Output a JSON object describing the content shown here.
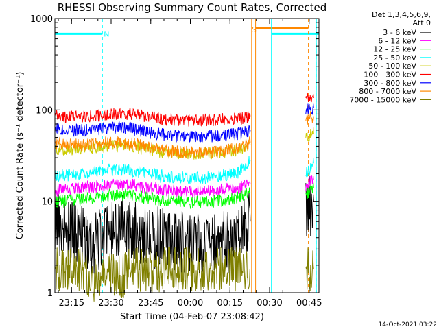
{
  "chart_data": {
    "type": "line",
    "title": "RHESSI Observing Summary Count Rates, Corrected",
    "xlabel": "Start Time (04-Feb-07 23:08:42)",
    "ylabel": "Corrected Count Rate (s⁻¹ detector⁻¹)",
    "yscale": "log",
    "ylim": [
      1,
      1000
    ],
    "xlim_minutes": [
      0,
      100
    ],
    "x_tick_minutes": [
      6.3,
      21.3,
      36.3,
      51.3,
      66.3,
      81.3,
      96.3
    ],
    "x_tick_labels": [
      "23:15",
      "23:30",
      "23:45",
      "00:00",
      "00:15",
      "00:30",
      "00:45"
    ],
    "y_ticks": [
      1,
      10,
      100,
      1000
    ],
    "y_tick_labels": [
      "1",
      "10",
      "100",
      "1000"
    ],
    "legend_header": "Det 1,3,4,5,6,9,",
    "legend_subheader": "Att 0",
    "legend_position": "right",
    "timestamp": "14-Oct-2021 03:22",
    "series": [
      {
        "name": "3 - 6 keV",
        "color": "#000000",
        "x": [
          0,
          5,
          10,
          15,
          20,
          25,
          30,
          35,
          40,
          45,
          50,
          55,
          60,
          65,
          70,
          74,
          95,
          98
        ],
        "y": [
          6,
          5,
          4,
          3.5,
          4,
          6,
          4.5,
          4,
          4,
          3.5,
          3.5,
          3.5,
          3.5,
          3.5,
          4,
          6,
          8,
          10
        ]
      },
      {
        "name": "6 - 12 keV",
        "color": "#ff00ff",
        "x": [
          0,
          5,
          10,
          15,
          20,
          25,
          30,
          35,
          40,
          45,
          50,
          55,
          60,
          65,
          70,
          74,
          95,
          98
        ],
        "y": [
          13,
          13.5,
          14,
          14.5,
          15,
          15.5,
          15,
          14,
          13.5,
          13,
          12.8,
          12.8,
          13,
          13.5,
          14,
          15.5,
          15,
          17
        ]
      },
      {
        "name": "12 - 25 keV",
        "color": "#00ff00",
        "x": [
          0,
          5,
          10,
          15,
          20,
          25,
          30,
          35,
          40,
          45,
          50,
          55,
          60,
          65,
          70,
          74,
          95,
          98
        ],
        "y": [
          10,
          10.2,
          10.5,
          11,
          11.5,
          12,
          11.5,
          10.8,
          10.3,
          10,
          9.8,
          9.8,
          10,
          10.3,
          11,
          12.5,
          12,
          14
        ]
      },
      {
        "name": "25 - 50 keV",
        "color": "#00ffff",
        "x": [
          0,
          5,
          10,
          15,
          20,
          25,
          30,
          35,
          40,
          45,
          50,
          55,
          60,
          65,
          70,
          74,
          95,
          98
        ],
        "y": [
          19,
          19.5,
          20,
          21,
          22,
          22.5,
          21.5,
          20,
          19,
          18.5,
          18,
          18,
          18.5,
          19.5,
          21,
          28,
          20,
          26
        ]
      },
      {
        "name": "50 - 100 keV",
        "color": "#cccc00",
        "x": [
          0,
          5,
          10,
          15,
          20,
          25,
          30,
          35,
          40,
          45,
          50,
          55,
          60,
          65,
          70,
          74,
          95,
          98
        ],
        "y": [
          37,
          37,
          38,
          39,
          40,
          40.5,
          39,
          37,
          35,
          34,
          33.5,
          33.5,
          34,
          35,
          37,
          42,
          50,
          55
        ]
      },
      {
        "name": "100 - 300 keV",
        "color": "#ff0000",
        "x": [
          0,
          5,
          10,
          15,
          20,
          25,
          30,
          35,
          40,
          45,
          50,
          55,
          60,
          65,
          70,
          74,
          95,
          98
        ],
        "y": [
          85,
          84,
          84,
          86,
          90,
          92,
          89,
          84,
          80,
          78,
          77,
          77,
          78,
          79,
          81,
          85,
          130,
          135
        ]
      },
      {
        "name": "300 - 800 keV",
        "color": "#0000ff",
        "x": [
          0,
          5,
          10,
          15,
          20,
          25,
          30,
          35,
          40,
          45,
          50,
          55,
          60,
          65,
          70,
          74,
          95,
          98
        ],
        "y": [
          63,
          61,
          60,
          61,
          63,
          64,
          61,
          57,
          54,
          52,
          51,
          51,
          52,
          53,
          55,
          60,
          100,
          105
        ]
      },
      {
        "name": "800 - 7000 keV",
        "color": "#ff8800",
        "x": [
          0,
          5,
          10,
          15,
          20,
          25,
          30,
          35,
          40,
          45,
          50,
          55,
          60,
          65,
          70,
          74,
          95,
          98
        ],
        "y": [
          44,
          42,
          41,
          42,
          43,
          44,
          42,
          39,
          37,
          35,
          34.5,
          34.5,
          35,
          36,
          38,
          44,
          80,
          85
        ]
      },
      {
        "name": "7000 - 15000 keV",
        "color": "#808000",
        "x": [
          0,
          5,
          10,
          15,
          20,
          25,
          30,
          35,
          40,
          45,
          50,
          55,
          60,
          65,
          70,
          74,
          95,
          98
        ],
        "y": [
          1.8,
          1.8,
          1.8,
          1.3,
          1.8,
          1.5,
          1.8,
          1.8,
          1.8,
          1.8,
          1.8,
          1.8,
          1.8,
          1.8,
          1.8,
          1.8,
          1.8,
          1.8
        ]
      }
    ],
    "annotations": [
      {
        "text": "N",
        "color": "#00ffff",
        "x": 18.5,
        "y": 680
      },
      {
        "text": "S",
        "color": "#ff8800",
        "x": 74.5,
        "y": 760
      }
    ],
    "markers": {
      "night_intervals": [
        [
          -1,
          18
        ],
        [
          82,
          100
        ]
      ],
      "saa_intervals": [
        [
          76,
          96
        ]
      ],
      "cyan_lines_solid": [
        0,
        82,
        99
      ],
      "cyan_lines_dashed": [
        18,
        99
      ],
      "orange_lines_solid": [
        74.5,
        76
      ],
      "orange_lines_dashed": [
        96
      ]
    }
  }
}
